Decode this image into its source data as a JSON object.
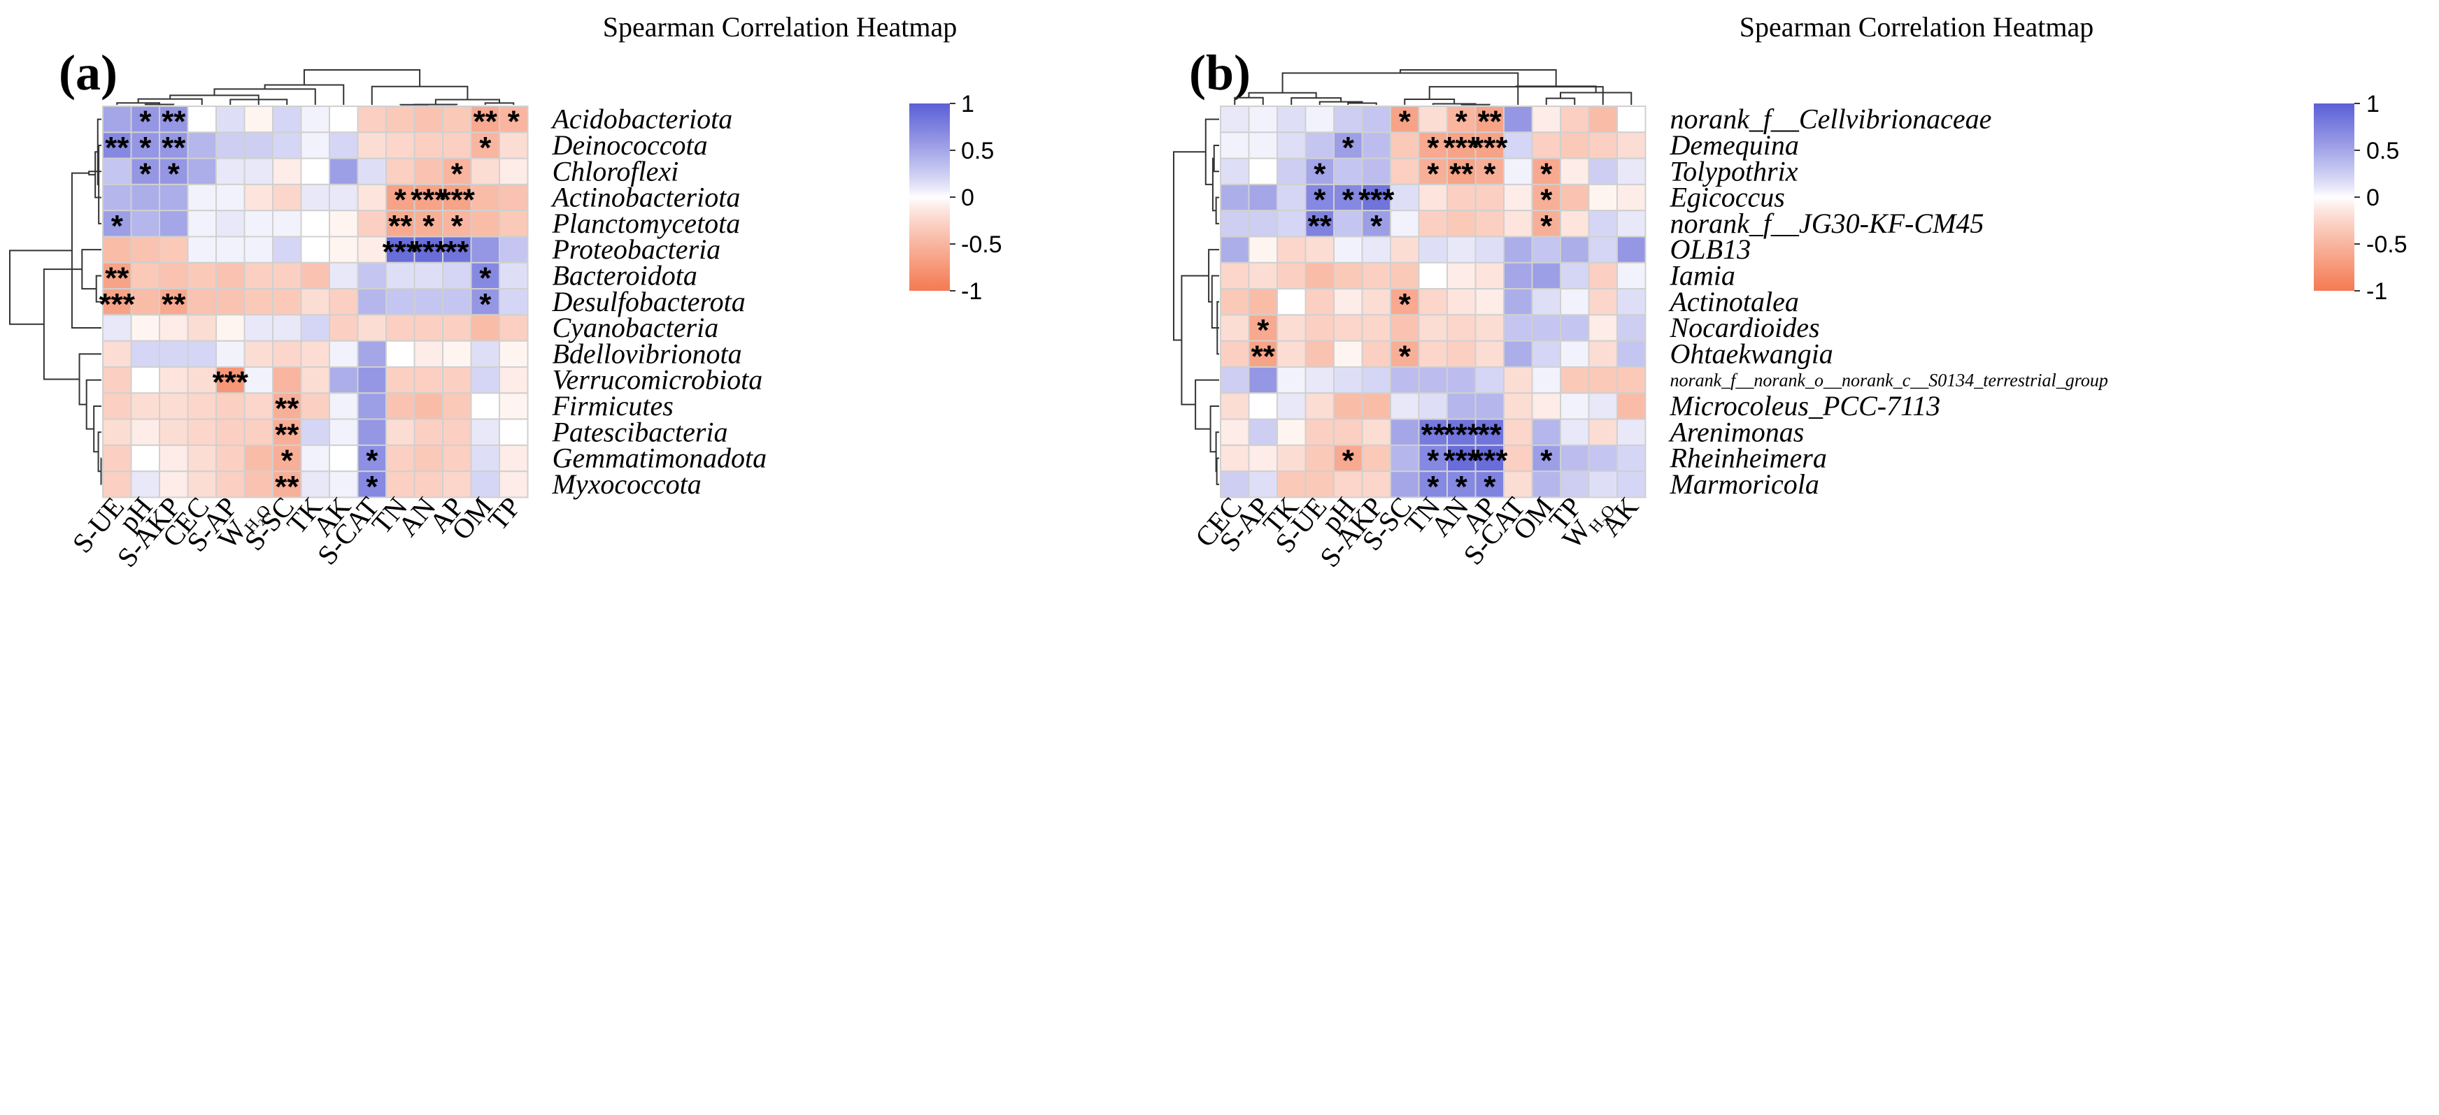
{
  "chart_data": [
    {
      "type": "heatmap",
      "panel_label": "(a)",
      "title": "Spearman Correlation Heatmap",
      "columns": [
        "S-UE",
        "pH",
        "S-AKP",
        "CEC",
        "S-AP",
        "W_H2O",
        "S-SC",
        "TK",
        "AK",
        "S-CAT",
        "TN",
        "AN",
        "AP",
        "OM",
        "TP"
      ],
      "rows": [
        "Acidobacteriota",
        "Deinococcota",
        "Chloroflexi",
        "Actinobacteriota",
        "Planctomycetota",
        "Proteobacteria",
        "Bacteroidota",
        "Desulfobacterota",
        "Cyanobacteria",
        "Bdellovibrionota",
        "Verrucomicrobiota",
        "Firmicutes",
        "Patescibacteria",
        "Gemmatimonadota",
        "Myxococcota"
      ],
      "values": [
        [
          0.5,
          0.6,
          0.6,
          0.0,
          0.15,
          -0.05,
          0.2,
          0.05,
          0.0,
          -0.3,
          -0.35,
          -0.4,
          -0.35,
          -0.6,
          -0.5
        ],
        [
          0.7,
          0.6,
          0.6,
          0.4,
          0.25,
          0.25,
          0.2,
          0.05,
          0.2,
          -0.2,
          -0.25,
          -0.3,
          -0.3,
          -0.5,
          -0.2
        ],
        [
          0.3,
          0.6,
          0.6,
          0.45,
          0.1,
          0.1,
          -0.1,
          0.0,
          0.55,
          0.15,
          -0.3,
          -0.4,
          -0.5,
          -0.2,
          -0.1
        ],
        [
          0.4,
          0.45,
          0.45,
          0.05,
          0.05,
          -0.15,
          -0.25,
          0.1,
          0.1,
          -0.15,
          -0.65,
          -0.65,
          -0.65,
          -0.45,
          -0.4
        ],
        [
          0.55,
          0.4,
          0.5,
          0.05,
          0.1,
          0.05,
          0.05,
          0.0,
          -0.05,
          -0.3,
          -0.6,
          -0.55,
          -0.5,
          -0.45,
          -0.35
        ],
        [
          -0.45,
          -0.4,
          -0.35,
          0.05,
          0.05,
          0.05,
          0.2,
          0.0,
          -0.05,
          -0.1,
          0.9,
          0.9,
          0.85,
          0.6,
          0.3
        ],
        [
          -0.65,
          -0.35,
          -0.4,
          -0.35,
          -0.4,
          -0.3,
          -0.3,
          -0.4,
          0.1,
          0.3,
          0.15,
          0.15,
          0.2,
          0.7,
          0.15
        ],
        [
          -0.65,
          -0.45,
          -0.6,
          -0.4,
          -0.4,
          -0.35,
          -0.35,
          -0.2,
          -0.3,
          0.4,
          0.3,
          0.3,
          0.3,
          0.6,
          0.2
        ],
        [
          0.1,
          -0.05,
          -0.1,
          -0.2,
          -0.05,
          0.1,
          0.1,
          0.2,
          -0.3,
          -0.2,
          -0.3,
          -0.3,
          -0.3,
          -0.45,
          -0.3
        ],
        [
          -0.2,
          0.2,
          0.2,
          0.2,
          0.05,
          -0.2,
          -0.25,
          -0.2,
          0.05,
          0.5,
          0.0,
          -0.1,
          -0.05,
          0.15,
          -0.05
        ],
        [
          -0.3,
          0.0,
          -0.15,
          -0.2,
          -0.75,
          0.05,
          -0.5,
          -0.2,
          0.45,
          0.6,
          -0.3,
          -0.3,
          -0.3,
          0.2,
          -0.1
        ],
        [
          -0.3,
          -0.2,
          -0.2,
          -0.25,
          -0.3,
          -0.25,
          -0.55,
          -0.3,
          0.05,
          0.55,
          -0.4,
          -0.45,
          -0.35,
          0.0,
          -0.05
        ],
        [
          -0.2,
          -0.1,
          -0.2,
          -0.25,
          -0.3,
          -0.3,
          -0.55,
          0.2,
          0.05,
          0.6,
          -0.2,
          -0.3,
          -0.3,
          0.1,
          0.0
        ],
        [
          -0.3,
          0.0,
          -0.1,
          -0.2,
          -0.3,
          -0.45,
          -0.55,
          0.05,
          0.0,
          0.65,
          -0.3,
          -0.35,
          -0.3,
          0.15,
          -0.1
        ],
        [
          -0.3,
          0.1,
          -0.1,
          -0.2,
          -0.3,
          -0.4,
          -0.55,
          0.1,
          0.05,
          0.7,
          -0.3,
          -0.3,
          -0.25,
          0.2,
          -0.1
        ]
      ],
      "stars": [
        [
          "",
          "*",
          "**",
          "",
          "",
          "",
          "",
          "",
          "",
          "",
          "",
          "",
          "",
          "**",
          "*"
        ],
        [
          "**",
          "*",
          "**",
          "",
          "",
          "",
          "",
          "",
          "",
          "",
          "",
          "",
          "",
          "*",
          ""
        ],
        [
          "",
          "*",
          "*",
          "",
          "",
          "",
          "",
          "",
          "",
          "",
          "",
          "",
          "*",
          "",
          ""
        ],
        [
          "",
          "",
          "",
          "",
          "",
          "",
          "",
          "",
          "",
          "",
          "*",
          "***",
          "***",
          "",
          ""
        ],
        [
          "*",
          "",
          "",
          "",
          "",
          "",
          "",
          "",
          "",
          "",
          "**",
          "*",
          "*",
          "",
          ""
        ],
        [
          "",
          "",
          "",
          "",
          "",
          "",
          "",
          "",
          "",
          "",
          "***",
          "***",
          "**",
          "",
          ""
        ],
        [
          "**",
          "",
          "",
          "",
          "",
          "",
          "",
          "",
          "",
          "",
          "",
          "",
          "",
          "*",
          ""
        ],
        [
          "***",
          "",
          "**",
          "",
          "",
          "",
          "",
          "",
          "",
          "",
          "",
          "",
          "",
          "*",
          ""
        ],
        [
          "",
          "",
          "",
          "",
          "",
          "",
          "",
          "",
          "",
          "",
          "",
          "",
          "",
          "",
          ""
        ],
        [
          "",
          "",
          "",
          "",
          "",
          "",
          "",
          "",
          "",
          "",
          "",
          "",
          "",
          "",
          ""
        ],
        [
          "",
          "",
          "",
          "",
          "***",
          "",
          "",
          "",
          "",
          "",
          "",
          "",
          "",
          "",
          ""
        ],
        [
          "",
          "",
          "",
          "",
          "",
          "",
          "**",
          "",
          "",
          "",
          "",
          "",
          "",
          "",
          ""
        ],
        [
          "",
          "",
          "",
          "",
          "",
          "",
          "**",
          "",
          "",
          "",
          "",
          "",
          "",
          "",
          ""
        ],
        [
          "",
          "",
          "",
          "",
          "",
          "",
          "*",
          "",
          "",
          "*",
          "",
          "",
          "",
          "",
          ""
        ],
        [
          "",
          "",
          "",
          "",
          "",
          "",
          "**",
          "",
          "",
          "*",
          "",
          "",
          "",
          "",
          ""
        ]
      ],
      "value_range": [
        -1,
        1
      ],
      "colorbar": {
        "ticks": [
          1,
          0.5,
          0,
          -0.5,
          -1
        ],
        "tick_labels": [
          "1",
          "0.5",
          "0",
          "-0.5",
          "-1"
        ],
        "color_high": "#5b5fd6",
        "color_mid": "#ffffff",
        "color_low": "#f47a52"
      }
    },
    {
      "type": "heatmap",
      "panel_label": "(b)",
      "title": "Spearman Correlation Heatmap",
      "columns": [
        "CEC",
        "S-AP",
        "TK",
        "S-UE",
        "pH",
        "S-AKP",
        "S-SC",
        "TN",
        "AN",
        "AP",
        "S-CAT",
        "OM",
        "TP",
        "W_H2O",
        "AK"
      ],
      "rows": [
        "norank_f__Cellvibrionaceae",
        "Demequina",
        "Tolypothrix",
        "Egicoccus",
        "norank_f__JG30-KF-CM45",
        "OLB13",
        "Iamia",
        "Actinotalea",
        "Nocardioides",
        "Ohtaekwangia",
        "norank_f__norank_o__norank_c__S0134_terrestrial_group",
        "Microcoleus_PCC-7113",
        "Arenimonas",
        "Rheinheimera",
        "Marmoricola"
      ],
      "values": [
        [
          0.1,
          0.05,
          0.15,
          0.05,
          0.25,
          0.3,
          -0.65,
          -0.2,
          -0.5,
          -0.65,
          0.6,
          -0.1,
          -0.3,
          -0.45,
          0.0
        ],
        [
          0.05,
          0.05,
          0.15,
          0.3,
          0.55,
          0.35,
          -0.35,
          -0.6,
          -0.65,
          -0.65,
          0.2,
          -0.3,
          -0.35,
          -0.3,
          -0.2
        ],
        [
          0.15,
          0.0,
          0.25,
          0.5,
          0.3,
          0.35,
          -0.3,
          -0.55,
          -0.65,
          -0.55,
          0.05,
          -0.6,
          -0.1,
          0.25,
          0.1
        ],
        [
          0.45,
          0.5,
          0.2,
          0.7,
          0.7,
          0.85,
          0.15,
          -0.15,
          -0.3,
          -0.3,
          -0.1,
          -0.55,
          -0.4,
          -0.05,
          -0.1
        ],
        [
          0.25,
          0.25,
          0.2,
          0.75,
          0.3,
          0.55,
          0.05,
          -0.3,
          -0.35,
          -0.3,
          -0.15,
          -0.55,
          -0.15,
          0.2,
          0.1
        ],
        [
          0.45,
          -0.05,
          -0.25,
          -0.2,
          0.05,
          0.1,
          -0.2,
          0.15,
          0.1,
          0.15,
          0.45,
          0.3,
          0.45,
          0.2,
          0.6
        ],
        [
          -0.25,
          -0.2,
          -0.3,
          -0.45,
          -0.35,
          -0.3,
          -0.35,
          0.0,
          -0.1,
          -0.15,
          0.5,
          0.55,
          0.2,
          -0.3,
          0.05
        ],
        [
          -0.35,
          -0.45,
          0.0,
          -0.3,
          -0.1,
          -0.2,
          -0.6,
          -0.25,
          -0.15,
          -0.1,
          0.45,
          0.15,
          0.05,
          -0.25,
          0.15
        ],
        [
          -0.2,
          -0.6,
          -0.2,
          -0.3,
          -0.25,
          -0.25,
          -0.4,
          -0.2,
          -0.25,
          -0.2,
          0.3,
          0.3,
          0.3,
          -0.1,
          0.25
        ],
        [
          -0.3,
          -0.65,
          -0.2,
          -0.4,
          -0.05,
          -0.3,
          -0.55,
          -0.25,
          -0.3,
          -0.2,
          0.45,
          0.2,
          0.05,
          -0.2,
          0.3
        ],
        [
          0.25,
          0.6,
          0.05,
          0.1,
          0.15,
          0.2,
          0.35,
          0.35,
          0.35,
          0.2,
          -0.2,
          0.05,
          -0.35,
          -0.35,
          -0.35
        ],
        [
          -0.2,
          0.0,
          0.1,
          -0.2,
          -0.45,
          -0.45,
          0.1,
          0.15,
          0.4,
          0.4,
          -0.2,
          -0.1,
          0.05,
          0.1,
          -0.45
        ],
        [
          -0.1,
          0.25,
          -0.05,
          -0.3,
          -0.3,
          -0.2,
          0.5,
          0.8,
          0.85,
          0.85,
          -0.25,
          0.4,
          0.1,
          -0.2,
          0.1
        ],
        [
          -0.15,
          -0.1,
          -0.2,
          -0.35,
          -0.6,
          -0.35,
          0.4,
          0.7,
          0.9,
          0.9,
          -0.3,
          0.55,
          0.35,
          0.3,
          0.2
        ],
        [
          0.25,
          0.15,
          -0.35,
          -0.35,
          -0.25,
          -0.25,
          0.5,
          0.7,
          0.7,
          0.75,
          -0.2,
          0.4,
          0.25,
          0.15,
          0.2
        ]
      ],
      "stars": [
        [
          "",
          "",
          "",
          "",
          "",
          "",
          "*",
          "",
          "*",
          "**",
          "",
          "",
          "",
          "",
          ""
        ],
        [
          "",
          "",
          "",
          "",
          "*",
          "",
          "",
          "*",
          "***",
          "***",
          "",
          "",
          "",
          "",
          ""
        ],
        [
          "",
          "",
          "",
          "*",
          "",
          "",
          "",
          "*",
          "**",
          "*",
          "",
          "*",
          "",
          "",
          ""
        ],
        [
          "",
          "",
          "",
          "*",
          "*",
          "***",
          "",
          "",
          "",
          "",
          "",
          "*",
          "",
          "",
          ""
        ],
        [
          "",
          "",
          "",
          "**",
          "",
          "*",
          "",
          "",
          "",
          "",
          "",
          "*",
          "",
          "",
          ""
        ],
        [
          "",
          "",
          "",
          "",
          "",
          "",
          "",
          "",
          "",
          "",
          "",
          "",
          "",
          "",
          ""
        ],
        [
          "",
          "",
          "",
          "",
          "",
          "",
          "",
          "",
          "",
          "",
          "",
          "",
          "",
          "",
          ""
        ],
        [
          "",
          "",
          "",
          "",
          "",
          "",
          "*",
          "",
          "",
          "",
          "",
          "",
          "",
          "",
          ""
        ],
        [
          "",
          "*",
          "",
          "",
          "",
          "",
          "",
          "",
          "",
          "",
          "",
          "",
          "",
          "",
          ""
        ],
        [
          "",
          "**",
          "",
          "",
          "",
          "",
          "*",
          "",
          "",
          "",
          "",
          "",
          "",
          "",
          ""
        ],
        [
          "",
          "",
          "",
          "",
          "",
          "",
          "",
          "",
          "",
          "",
          "",
          "",
          "",
          "",
          ""
        ],
        [
          "",
          "",
          "",
          "",
          "",
          "",
          "",
          "",
          "",
          "",
          "",
          "",
          "",
          "",
          ""
        ],
        [
          "",
          "",
          "",
          "",
          "",
          "",
          "",
          "**",
          "***",
          "**",
          "",
          "",
          "",
          "",
          ""
        ],
        [
          "",
          "",
          "",
          "",
          "*",
          "",
          "",
          "*",
          "***",
          "***",
          "",
          "*",
          "",
          "",
          ""
        ],
        [
          "",
          "",
          "",
          "",
          "",
          "",
          "",
          "*",
          "*",
          "*",
          "",
          "",
          "",
          "",
          ""
        ]
      ],
      "value_range": [
        -1,
        1
      ],
      "colorbar": {
        "ticks": [
          1,
          0.5,
          0,
          -0.5,
          -1
        ],
        "tick_labels": [
          "1",
          "0.5",
          "0",
          "-0.5",
          "-1"
        ],
        "color_high": "#5b5fd6",
        "color_mid": "#ffffff",
        "color_low": "#f47a52"
      }
    }
  ]
}
